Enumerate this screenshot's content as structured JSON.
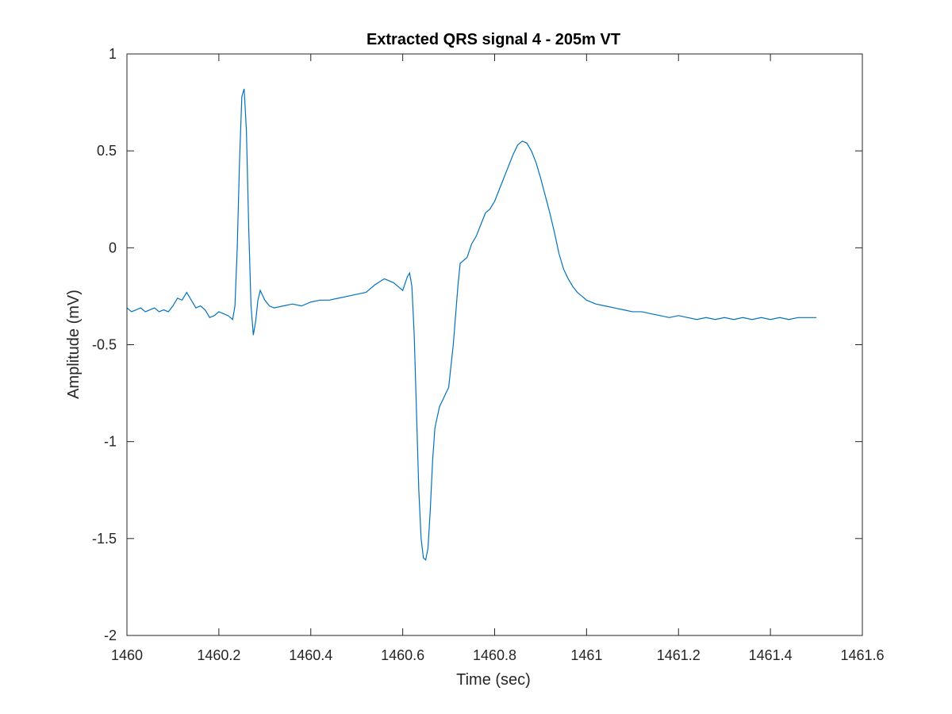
{
  "chart_data": {
    "type": "line",
    "title": "Extracted QRS signal 4 - 205m VT",
    "xlabel": "Time (sec)",
    "ylabel": "Amplitude (mV)",
    "xlim": [
      1460,
      1461.6
    ],
    "ylim": [
      -2,
      1
    ],
    "xticks": [
      1460,
      1460.2,
      1460.4,
      1460.6,
      1460.8,
      1461,
      1461.2,
      1461.4,
      1461.6
    ],
    "xtick_labels": [
      "1460",
      "1460.2",
      "1460.4",
      "1460.6",
      "1460.8",
      "1461",
      "1461.2",
      "1461.4",
      "1461.6"
    ],
    "yticks": [
      -2,
      -1.5,
      -1,
      -0.5,
      0,
      0.5,
      1
    ],
    "ytick_labels": [
      "-2",
      "-1.5",
      "-1",
      "-0.5",
      "0",
      "0.5",
      "1"
    ],
    "grid": false,
    "line_color": "#0072BD",
    "series": [
      {
        "x": [
          1460.0,
          1460.01,
          1460.02,
          1460.03,
          1460.04,
          1460.05,
          1460.06,
          1460.07,
          1460.08,
          1460.09,
          1460.1,
          1460.11,
          1460.12,
          1460.13,
          1460.14,
          1460.15,
          1460.16,
          1460.17,
          1460.18,
          1460.19,
          1460.2,
          1460.21,
          1460.22,
          1460.23,
          1460.235,
          1460.24,
          1460.245,
          1460.25,
          1460.255,
          1460.26,
          1460.265,
          1460.27,
          1460.275,
          1460.28,
          1460.285,
          1460.29,
          1460.3,
          1460.31,
          1460.32,
          1460.34,
          1460.36,
          1460.38,
          1460.4,
          1460.42,
          1460.44,
          1460.46,
          1460.48,
          1460.5,
          1460.52,
          1460.54,
          1460.56,
          1460.58,
          1460.59,
          1460.6,
          1460.61,
          1460.615,
          1460.62,
          1460.625,
          1460.63,
          1460.635,
          1460.64,
          1460.645,
          1460.65,
          1460.655,
          1460.66,
          1460.665,
          1460.67,
          1460.68,
          1460.69,
          1460.7,
          1460.71,
          1460.72,
          1460.725,
          1460.73,
          1460.735,
          1460.74,
          1460.75,
          1460.76,
          1460.77,
          1460.78,
          1460.79,
          1460.8,
          1460.81,
          1460.82,
          1460.83,
          1460.84,
          1460.85,
          1460.86,
          1460.87,
          1460.88,
          1460.89,
          1460.9,
          1460.91,
          1460.92,
          1460.93,
          1460.94,
          1460.95,
          1460.96,
          1460.97,
          1460.98,
          1460.99,
          1461.0,
          1461.02,
          1461.04,
          1461.06,
          1461.08,
          1461.1,
          1461.12,
          1461.14,
          1461.16,
          1461.18,
          1461.2,
          1461.22,
          1461.24,
          1461.26,
          1461.28,
          1461.3,
          1461.32,
          1461.34,
          1461.36,
          1461.38,
          1461.4,
          1461.42,
          1461.44,
          1461.46,
          1461.48,
          1461.5
        ],
        "y": [
          -0.31,
          -0.33,
          -0.32,
          -0.31,
          -0.33,
          -0.32,
          -0.31,
          -0.33,
          -0.32,
          -0.33,
          -0.3,
          -0.26,
          -0.27,
          -0.23,
          -0.27,
          -0.31,
          -0.3,
          -0.32,
          -0.36,
          -0.35,
          -0.33,
          -0.34,
          -0.35,
          -0.37,
          -0.3,
          0.0,
          0.45,
          0.78,
          0.82,
          0.6,
          0.1,
          -0.3,
          -0.45,
          -0.38,
          -0.27,
          -0.22,
          -0.27,
          -0.3,
          -0.31,
          -0.3,
          -0.29,
          -0.3,
          -0.28,
          -0.27,
          -0.27,
          -0.26,
          -0.25,
          -0.24,
          -0.23,
          -0.19,
          -0.16,
          -0.18,
          -0.2,
          -0.22,
          -0.15,
          -0.13,
          -0.2,
          -0.45,
          -0.85,
          -1.25,
          -1.5,
          -1.6,
          -1.61,
          -1.55,
          -1.35,
          -1.1,
          -0.93,
          -0.82,
          -0.77,
          -0.72,
          -0.5,
          -0.2,
          -0.08,
          -0.07,
          -0.06,
          -0.05,
          0.02,
          0.06,
          0.12,
          0.18,
          0.2,
          0.24,
          0.3,
          0.36,
          0.42,
          0.48,
          0.53,
          0.55,
          0.54,
          0.5,
          0.44,
          0.36,
          0.27,
          0.18,
          0.08,
          -0.03,
          -0.11,
          -0.16,
          -0.2,
          -0.23,
          -0.25,
          -0.27,
          -0.29,
          -0.3,
          -0.31,
          -0.32,
          -0.33,
          -0.33,
          -0.34,
          -0.35,
          -0.36,
          -0.35,
          -0.36,
          -0.37,
          -0.36,
          -0.37,
          -0.36,
          -0.37,
          -0.36,
          -0.37,
          -0.36,
          -0.37,
          -0.36,
          -0.37,
          -0.36,
          -0.36,
          -0.36
        ]
      }
    ]
  }
}
